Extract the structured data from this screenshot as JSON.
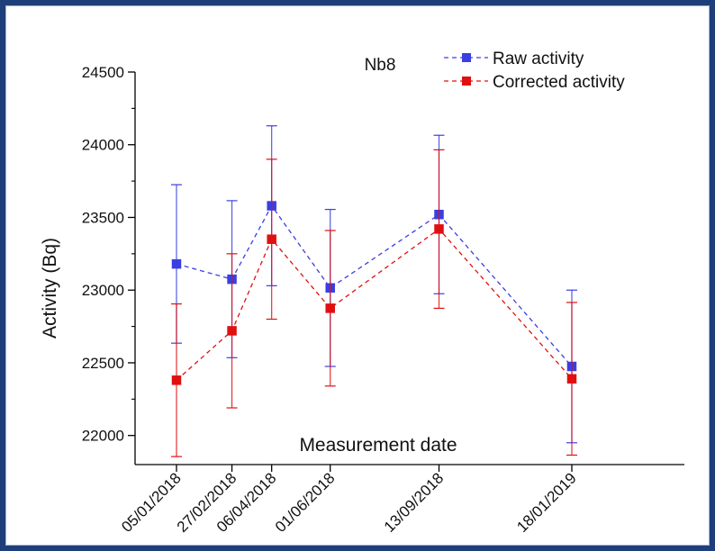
{
  "chart_data": {
    "type": "line",
    "title": "Nb8",
    "xlabel": "Measurement date",
    "ylabel": "Activity (Bq)",
    "categories": [
      "05/01/2018",
      "27/02/2018",
      "06/04/2018",
      "01/06/2018",
      "13/09/2018",
      "18/01/2019"
    ],
    "ylim": [
      21800,
      24500
    ],
    "yticks": [
      22000,
      22500,
      23000,
      23500,
      24000,
      24500
    ],
    "grid": false,
    "legend_position": "top-right",
    "series": [
      {
        "name": "Raw activity",
        "color": "#3b3fe0",
        "line_style": "dashed",
        "marker": "square",
        "values": [
          23180,
          23075,
          23580,
          23015,
          23520,
          22475
        ],
        "errors": [
          545,
          540,
          550,
          540,
          545,
          525
        ]
      },
      {
        "name": "Corrected activity",
        "color": "#e01010",
        "line_style": "dashed",
        "marker": "square",
        "values": [
          22380,
          22720,
          23350,
          22875,
          23420,
          22390
        ],
        "errors": [
          525,
          530,
          550,
          535,
          545,
          525
        ]
      }
    ]
  }
}
